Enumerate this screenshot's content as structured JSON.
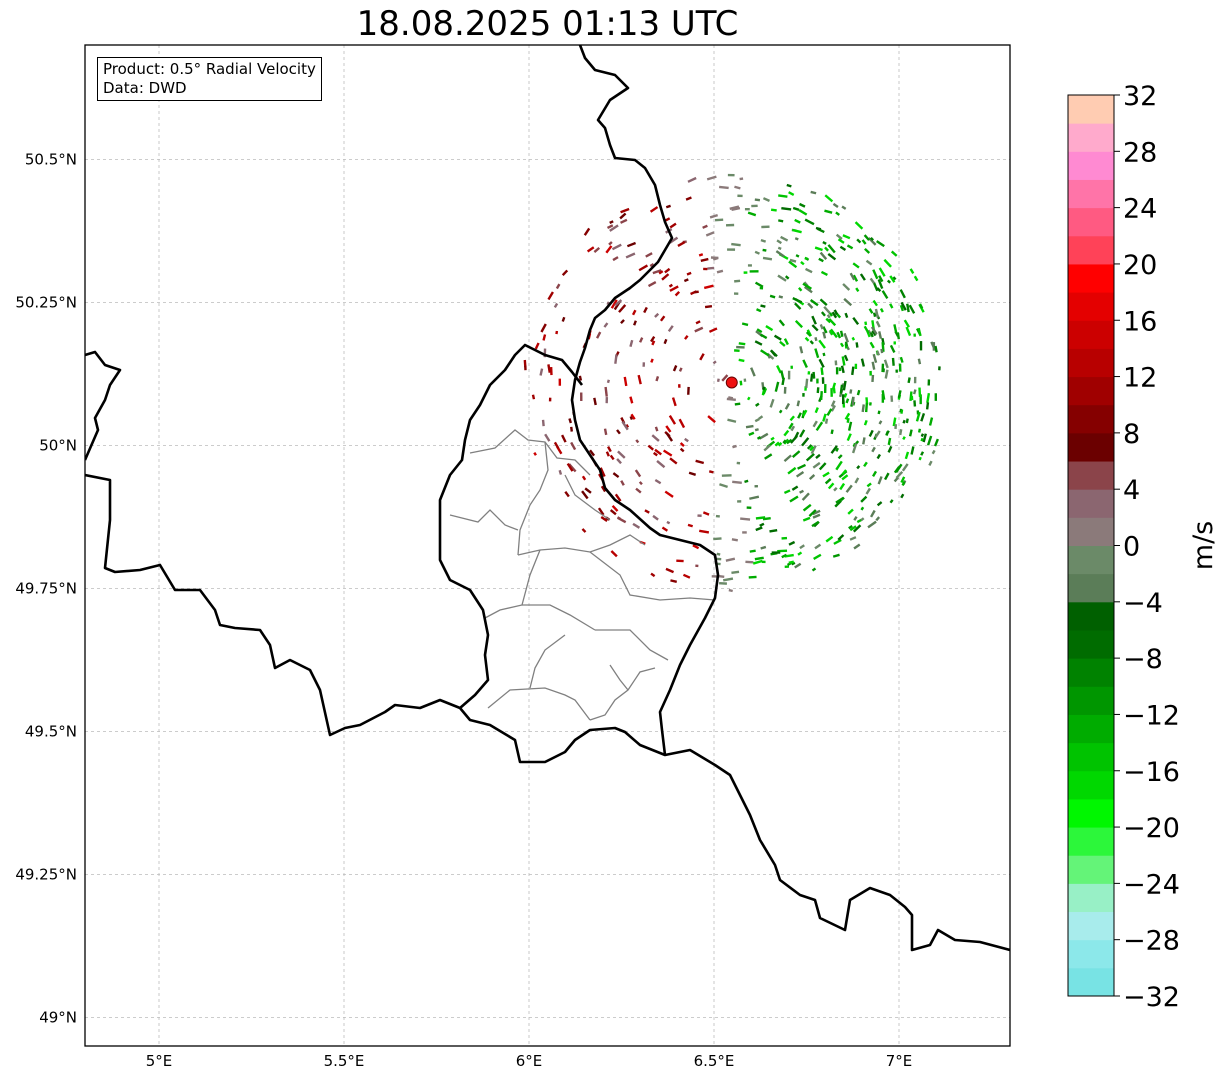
{
  "title": "18.08.2025 01:13 UTC",
  "info": {
    "product": "Product: 0.5° Radial Velocity",
    "data": "Data: DWD"
  },
  "map": {
    "lon_range": [
      4.8,
      7.3
    ],
    "lat_range": [
      48.95,
      50.7
    ],
    "lon_ticks": [
      {
        "value": 5.0,
        "label": "5°E"
      },
      {
        "value": 5.5,
        "label": "5.5°E"
      },
      {
        "value": 6.0,
        "label": "6°E"
      },
      {
        "value": 6.5,
        "label": "6.5°E"
      },
      {
        "value": 7.0,
        "label": "7°E"
      }
    ],
    "lat_ticks": [
      {
        "value": 49.0,
        "label": "49°N"
      },
      {
        "value": 49.25,
        "label": "49.25°N"
      },
      {
        "value": 49.5,
        "label": "49.5°N"
      },
      {
        "value": 49.75,
        "label": "49.75°N"
      },
      {
        "value": 50.0,
        "label": "50°N"
      },
      {
        "value": 50.25,
        "label": "50.25°N"
      },
      {
        "value": 50.5,
        "label": "50.5°N"
      }
    ],
    "radar_site": {
      "lon": 6.548,
      "lat": 50.11
    },
    "radar_max_range_deg": 0.56,
    "colors": {
      "border": "#000000",
      "admin": "#808080",
      "grid": "#bbbbbb",
      "site": "#ee1111"
    }
  },
  "colorbar": {
    "unit": "m/s",
    "min": -32,
    "max": 32,
    "step": 4,
    "tick_labels": [
      "32",
      "28",
      "24",
      "20",
      "16",
      "12",
      "8",
      "4",
      "0",
      "−4",
      "−8",
      "−12",
      "−16",
      "−20",
      "−24",
      "−28",
      "−32"
    ],
    "segments_bottom_to_top": [
      "#78e3e4",
      "#8ce8ea",
      "#a8ecec",
      "#98f0c6",
      "#64f478",
      "#2cf73a",
      "#00f700",
      "#00d800",
      "#00c300",
      "#00ac00",
      "#009600",
      "#008200",
      "#006c00",
      "#006000",
      "#5b7d58",
      "#6b8a68",
      "#8b7a7a",
      "#8b6670",
      "#8b444a",
      "#6b0000",
      "#850000",
      "#a00000",
      "#b80000",
      "#cc0000",
      "#e40000",
      "#ff0000",
      "#ff4258",
      "#ff5a82",
      "#ff74a8",
      "#ff8ad2",
      "#ffaacc",
      "#ffccb2"
    ]
  }
}
